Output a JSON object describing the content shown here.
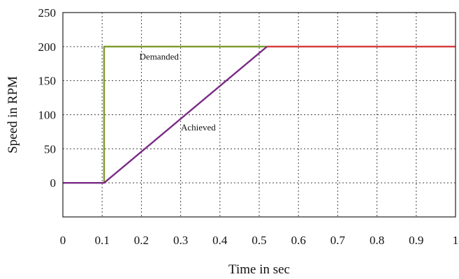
{
  "chart_data": {
    "type": "line",
    "xlabel": "Time in sec",
    "ylabel": "Speed in RPM",
    "xlim": [
      0,
      1
    ],
    "ylim": [
      -50,
      250
    ],
    "x_ticks": [
      "0",
      "0.1",
      "0.2",
      "0.3",
      "0.4",
      "0.5",
      "0.6",
      "0.7",
      "0.8",
      "0.9",
      "1"
    ],
    "y_ticks": [
      "0",
      "50",
      "100",
      "150",
      "200",
      "250"
    ],
    "x_tick_values": [
      0,
      0.1,
      0.2,
      0.3,
      0.4,
      0.5,
      0.6,
      0.7,
      0.8,
      0.9,
      1
    ],
    "y_tick_values": [
      0,
      50,
      100,
      150,
      200,
      250
    ],
    "grid": true,
    "series": [
      {
        "name": "Demanded",
        "color": "#7f9a2a",
        "x": [
          0.105,
          0.105,
          0.52
        ],
        "y": [
          0,
          200,
          200
        ]
      },
      {
        "name": "Achieved",
        "color": "#7a2a86",
        "x": [
          0,
          0.105,
          0.52
        ],
        "y": [
          0,
          0,
          200
        ]
      },
      {
        "name": "",
        "color": "#d23a3a",
        "x": [
          0.52,
          1
        ],
        "y": [
          200,
          200
        ]
      }
    ],
    "annotations": [
      {
        "text": "Demanded",
        "x": 0.245,
        "y": 181
      },
      {
        "text": "Achieved",
        "x": 0.345,
        "y": 77
      }
    ]
  }
}
